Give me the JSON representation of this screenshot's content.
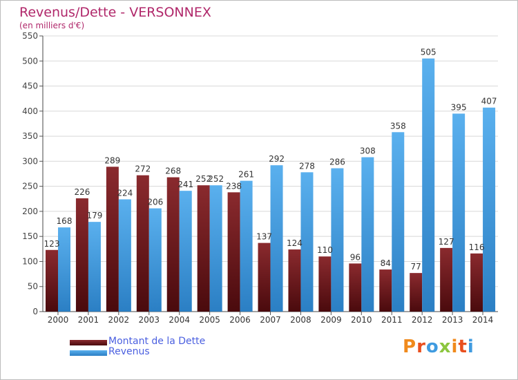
{
  "title": "Revenus/Dette - VERSONNEX",
  "subtitle": "(en milliers d'€)",
  "brand": "Proxiti",
  "colors": {
    "dette": "#7a1a1f",
    "revenus": "#3f9be0",
    "title": "#b0276a",
    "legend_text": "#4a5fe0"
  },
  "chart_data": {
    "type": "bar",
    "title": "Revenus/Dette - VERSONNEX",
    "subtitle": "(en milliers d'€)",
    "categories": [
      "2000",
      "2001",
      "2002",
      "2003",
      "2004",
      "2005",
      "2006",
      "2007",
      "2008",
      "2009",
      "2010",
      "2011",
      "2012",
      "2013",
      "2014"
    ],
    "series": [
      {
        "name": "Montant de la Dette",
        "values": [
          123,
          226,
          289,
          272,
          268,
          252,
          238,
          137,
          124,
          110,
          96,
          84,
          77,
          127,
          116
        ]
      },
      {
        "name": "Revenus",
        "values": [
          168,
          179,
          224,
          206,
          241,
          252,
          261,
          292,
          278,
          286,
          308,
          358,
          505,
          395,
          407
        ]
      }
    ],
    "ylim": [
      0,
      550
    ],
    "yticks": [
      0,
      50,
      100,
      150,
      200,
      250,
      300,
      350,
      400,
      450,
      500,
      550
    ],
    "grid": true,
    "legend_position": "bottom-left"
  }
}
